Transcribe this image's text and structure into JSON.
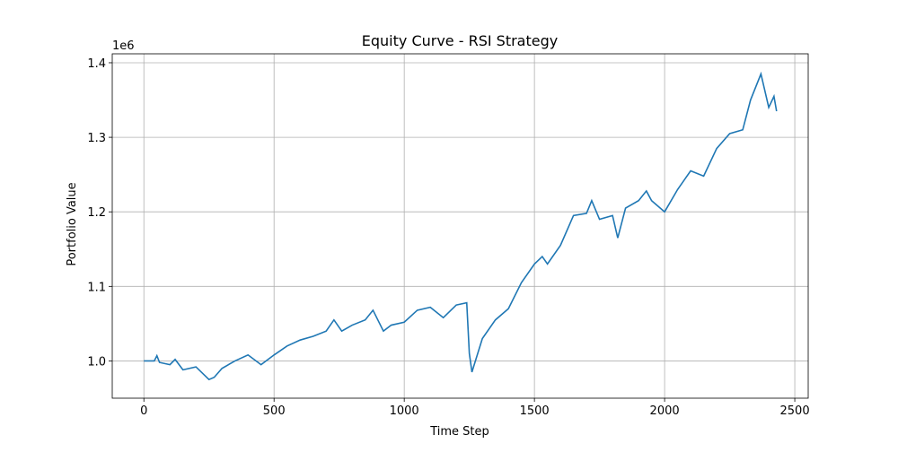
{
  "chart_data": {
    "type": "line",
    "title": "Equity Curve - RSI Strategy",
    "x_label": "Time Step",
    "y_label": "Portfolio Value",
    "y_offset_label": "1e6",
    "x": [
      0,
      40,
      50,
      60,
      100,
      120,
      150,
      200,
      250,
      270,
      300,
      350,
      400,
      450,
      500,
      550,
      600,
      650,
      700,
      730,
      760,
      800,
      850,
      880,
      920,
      950,
      1000,
      1050,
      1100,
      1150,
      1200,
      1240,
      1250,
      1260,
      1300,
      1350,
      1400,
      1450,
      1500,
      1530,
      1550,
      1600,
      1650,
      1700,
      1720,
      1750,
      1800,
      1820,
      1850,
      1900,
      1930,
      1950,
      2000,
      2050,
      2100,
      2150,
      2200,
      2250,
      2300,
      2330,
      2370,
      2400,
      2420,
      2430
    ],
    "series": [
      {
        "name": "Portfolio Value",
        "color": "#1f77b4",
        "values": [
          1000000,
          1000000,
          1007000,
          998000,
          995000,
          1002000,
          988000,
          992000,
          975000,
          978000,
          990000,
          1000000,
          1008000,
          995000,
          1008000,
          1020000,
          1028000,
          1033000,
          1040000,
          1055000,
          1040000,
          1048000,
          1055000,
          1068000,
          1040000,
          1048000,
          1052000,
          1068000,
          1072000,
          1058000,
          1075000,
          1078000,
          1010000,
          985000,
          1030000,
          1055000,
          1070000,
          1105000,
          1130000,
          1140000,
          1130000,
          1155000,
          1195000,
          1198000,
          1215000,
          1190000,
          1195000,
          1165000,
          1205000,
          1215000,
          1228000,
          1215000,
          1200000,
          1230000,
          1255000,
          1248000,
          1285000,
          1305000,
          1310000,
          1350000,
          1385000,
          1340000,
          1355000,
          1335000
        ]
      }
    ],
    "xlim": [
      -121.5,
      2551.5
    ],
    "xticks": [
      0,
      500,
      1000,
      1500,
      2000,
      2500
    ],
    "ylim": [
      950000,
      1412000
    ],
    "yticks": [
      {
        "value": 1000000,
        "label": "1.0"
      },
      {
        "value": 1100000,
        "label": "1.1"
      },
      {
        "value": 1200000,
        "label": "1.2"
      },
      {
        "value": 1300000,
        "label": "1.3"
      },
      {
        "value": 1400000,
        "label": "1.4"
      }
    ],
    "grid": true
  }
}
